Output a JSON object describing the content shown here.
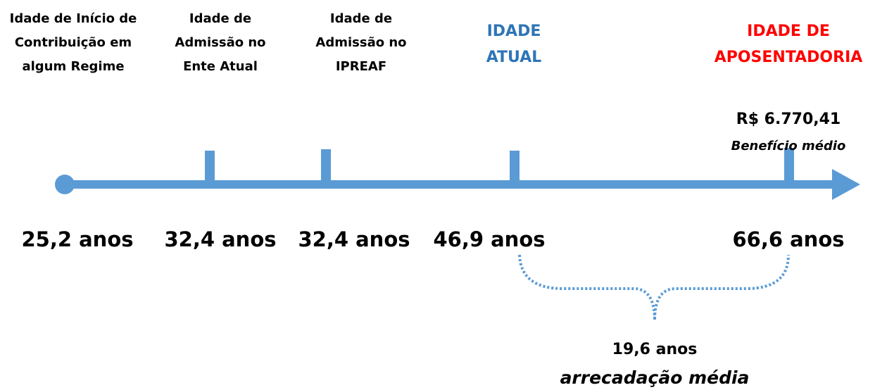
{
  "stages": [
    {
      "label": [
        "Idade de Início de",
        "Contribuição em",
        "algum Regime"
      ],
      "value": "25,2 anos"
    },
    {
      "label": [
        "Idade de",
        "Admissão no",
        "Ente Atual"
      ],
      "value": "32,4 anos"
    },
    {
      "label": [
        "Idade de",
        "Admissão no",
        "IPREAF"
      ],
      "value": "32,4 anos"
    },
    {
      "label": [
        "IDADE",
        "ATUAL"
      ],
      "value": "46,9 anos"
    },
    {
      "label": [
        "IDADE DE",
        "APOSENTADORIA"
      ],
      "value": "66,6 anos"
    }
  ],
  "benefit": {
    "amount": "R$ 6.770,41",
    "caption": "Benefício médio"
  },
  "period": {
    "value": "19,6 anos",
    "caption": "arrecadação média"
  }
}
